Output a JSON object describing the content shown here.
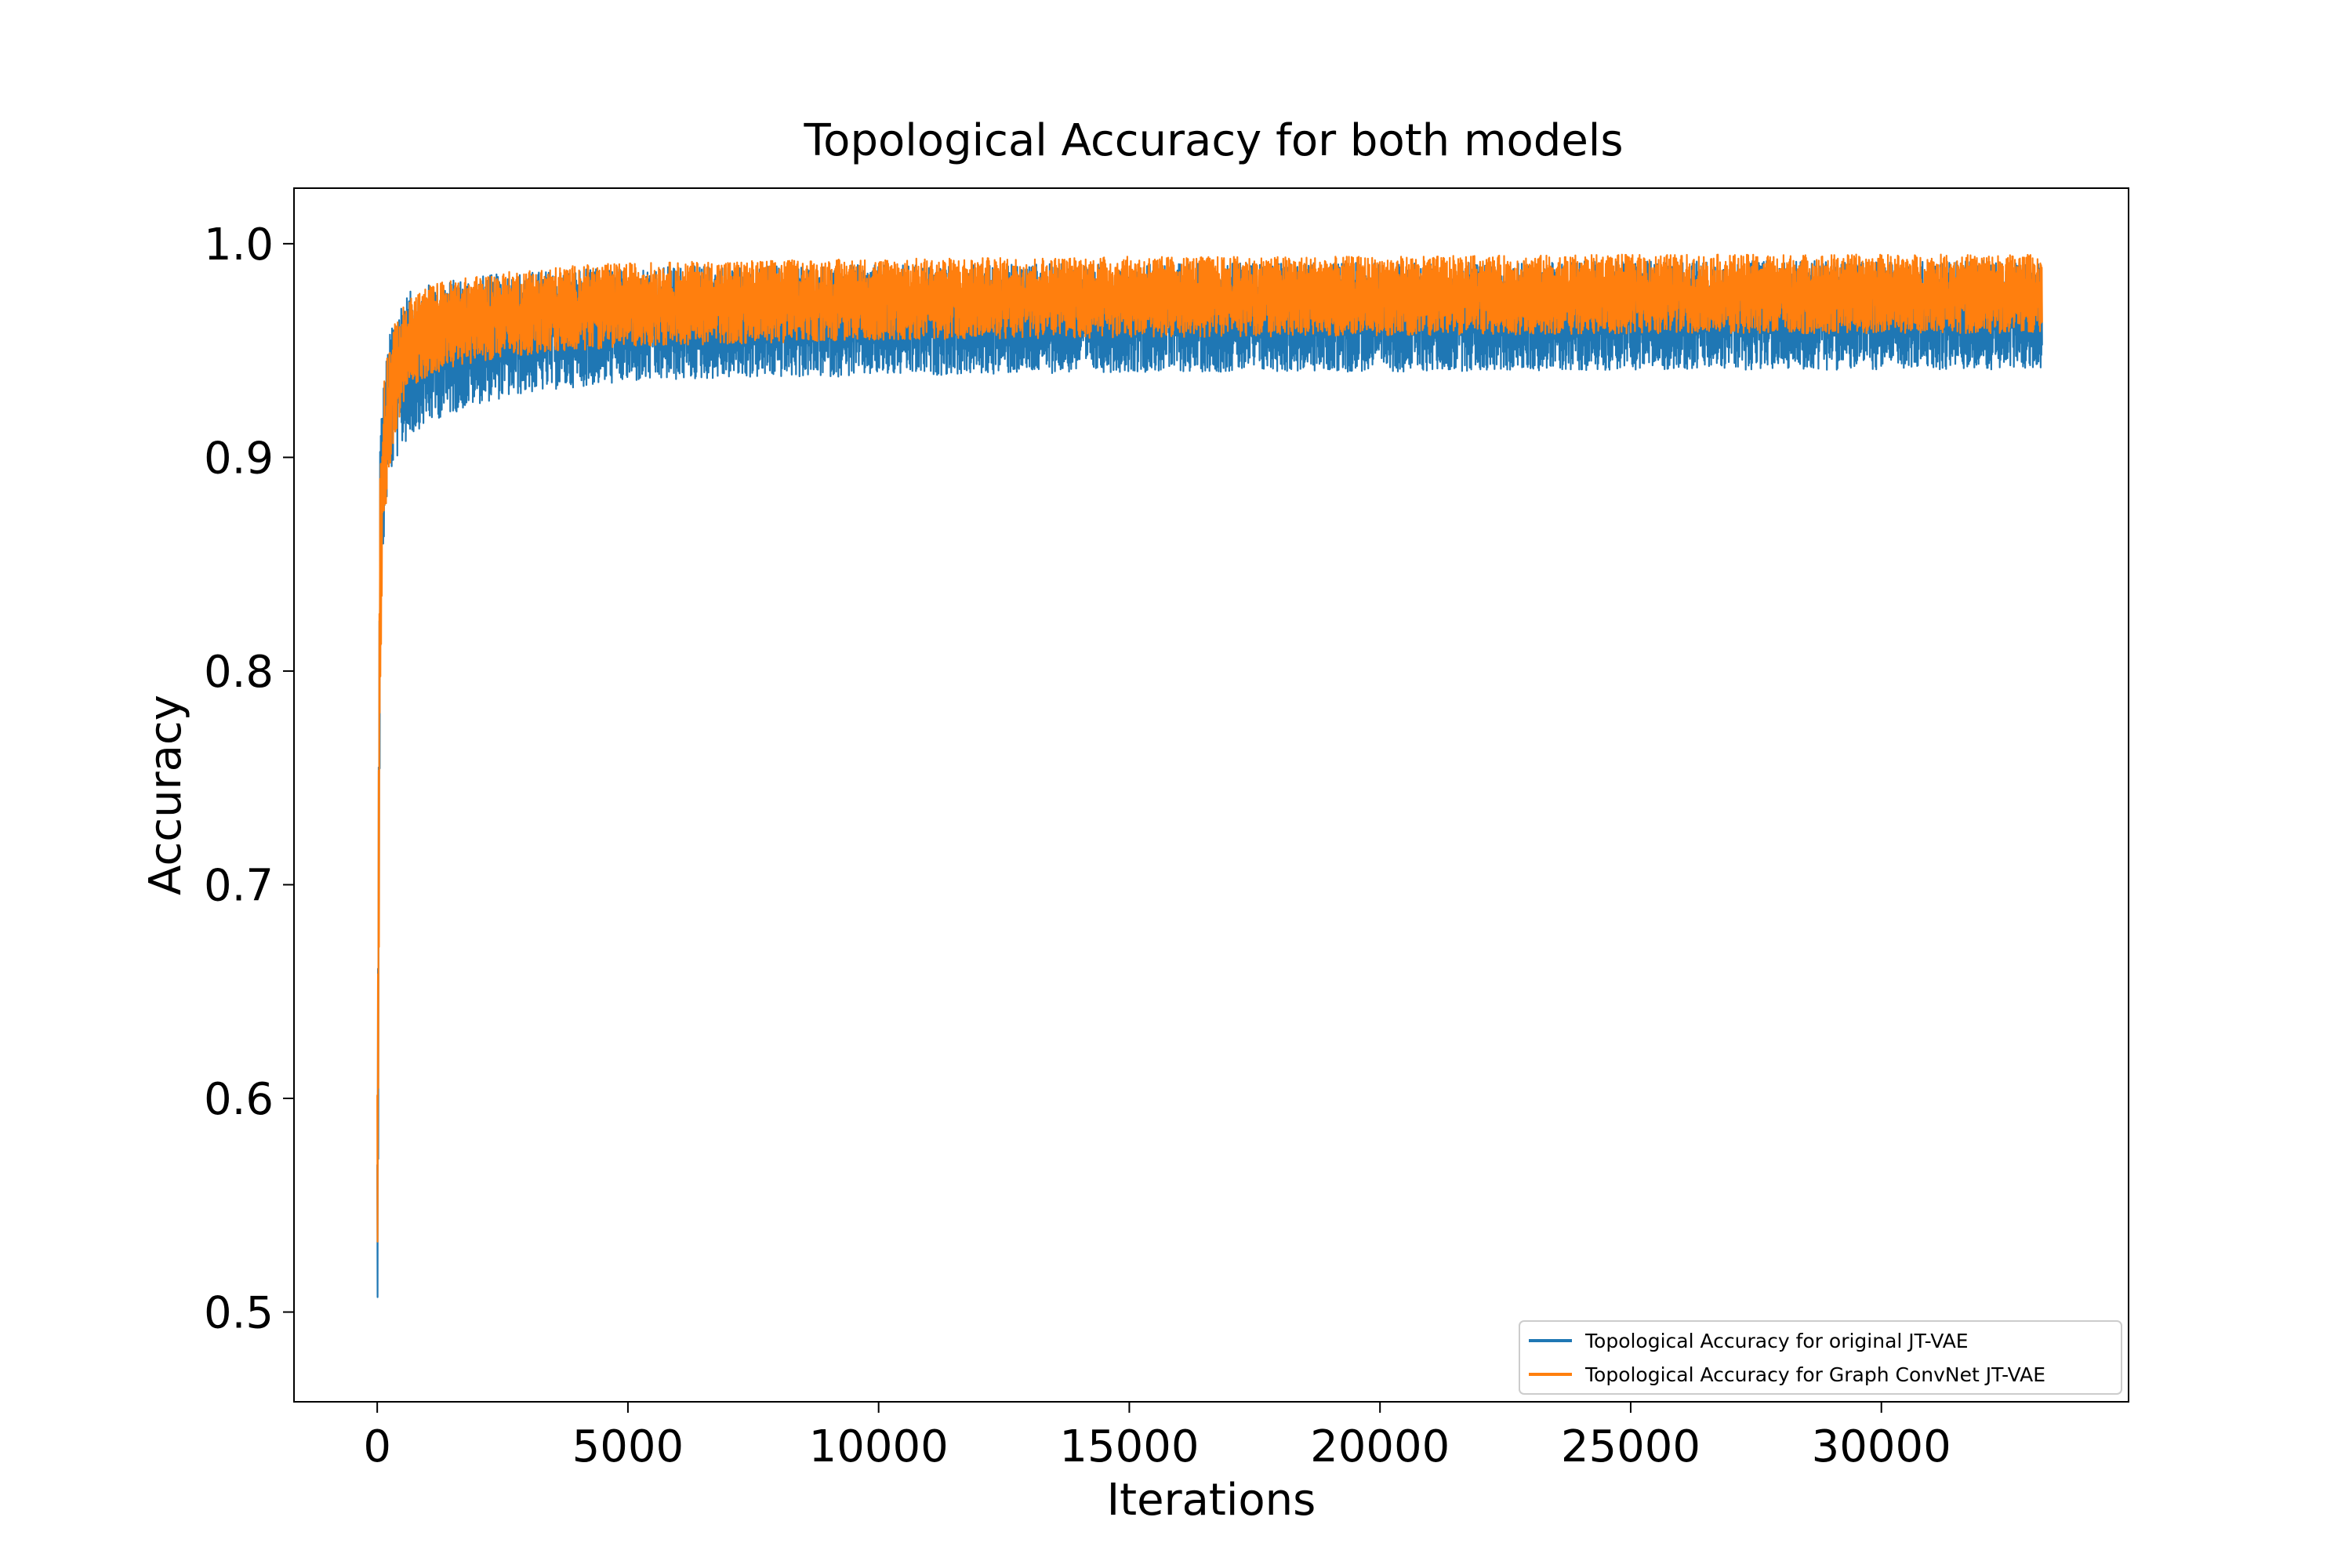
{
  "chart_data": {
    "type": "line",
    "title": "Topological Accuracy for both models",
    "xlabel": "Iterations",
    "ylabel": "Accuracy",
    "xlim": [
      -1660,
      34930
    ],
    "ylim": [
      0.458,
      1.026
    ],
    "xticks": [
      0,
      5000,
      10000,
      15000,
      20000,
      25000,
      30000
    ],
    "xtick_labels": [
      "0",
      "5000",
      "10000",
      "15000",
      "20000",
      "25000",
      "30000"
    ],
    "yticks": [
      0.5,
      0.6,
      0.7,
      0.8,
      0.9,
      1.0
    ],
    "ytick_labels": [
      "0.5",
      "0.6",
      "0.7",
      "0.8",
      "0.9",
      "1.0"
    ],
    "grid": false,
    "legend_position": "lower-right",
    "series": [
      {
        "name": "Topological Accuracy for original JT-VAE",
        "color": "#1f77b4",
        "envelope": {
          "x": [
            0,
            50,
            100,
            200,
            300,
            500,
            800,
            1200,
            2000,
            3000,
            4000,
            5000,
            7000,
            10000,
            15000,
            20000,
            25000,
            30000,
            33200
          ],
          "low": [
            0.482,
            0.8,
            0.85,
            0.885,
            0.895,
            0.905,
            0.913,
            0.918,
            0.925,
            0.93,
            0.933,
            0.935,
            0.937,
            0.938,
            0.94,
            0.94,
            0.941,
            0.941,
            0.941
          ],
          "high": [
            0.58,
            0.91,
            0.93,
            0.95,
            0.965,
            0.975,
            0.98,
            0.982,
            0.985,
            0.987,
            0.988,
            0.989,
            0.99,
            0.99,
            0.991,
            0.991,
            0.992,
            0.992,
            0.992
          ]
        }
      },
      {
        "name": "Topological Accuracy for Graph ConvNet JT-VAE",
        "color": "#ff7f0e",
        "envelope": {
          "x": [
            0,
            50,
            100,
            200,
            300,
            500,
            800,
            1200,
            2000,
            3000,
            4000,
            5000,
            7000,
            10000,
            15000,
            20000,
            25000,
            30000,
            33200
          ],
          "low": [
            0.525,
            0.78,
            0.86,
            0.885,
            0.905,
            0.925,
            0.935,
            0.94,
            0.945,
            0.948,
            0.95,
            0.952,
            0.953,
            0.955,
            0.956,
            0.957,
            0.958,
            0.958,
            0.958
          ],
          "high": [
            0.61,
            0.9,
            0.93,
            0.95,
            0.96,
            0.97,
            0.978,
            0.982,
            0.985,
            0.988,
            0.99,
            0.991,
            0.992,
            0.993,
            0.994,
            0.994,
            0.995,
            0.995,
            0.995
          ]
        }
      }
    ]
  }
}
